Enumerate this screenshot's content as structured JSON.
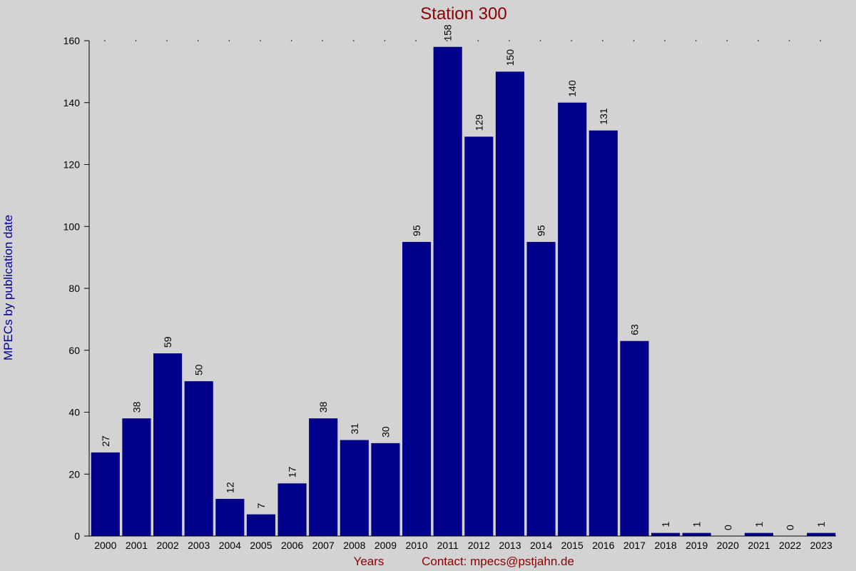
{
  "chart_data": {
    "type": "bar",
    "title": "Station 300",
    "xlabel": "Years",
    "ylabel": "MPECs by publication date",
    "footer": "Contact: mpecs@pstjahn.de",
    "categories": [
      "2000",
      "2001",
      "2002",
      "2003",
      "2004",
      "2005",
      "2006",
      "2007",
      "2008",
      "2009",
      "2010",
      "2011",
      "2012",
      "2013",
      "2014",
      "2015",
      "2016",
      "2017",
      "2018",
      "2019",
      "2020",
      "2021",
      "2022",
      "2023"
    ],
    "values": [
      27,
      38,
      59,
      50,
      12,
      7,
      17,
      38,
      31,
      30,
      95,
      158,
      129,
      150,
      95,
      140,
      131,
      63,
      1,
      1,
      0,
      1,
      0,
      1
    ],
    "ylim": [
      0,
      160
    ],
    "yticks": [
      0,
      20,
      40,
      60,
      80,
      100,
      120,
      140,
      160
    ],
    "grid": false,
    "legend": "none",
    "colors": {
      "bar": "#00008b",
      "title": "#8b0000",
      "ylabel": "#00008b",
      "xlabel": "#8b0000",
      "footer": "#8b0000",
      "background": "#d3d3d3",
      "axis": "#000000"
    }
  }
}
